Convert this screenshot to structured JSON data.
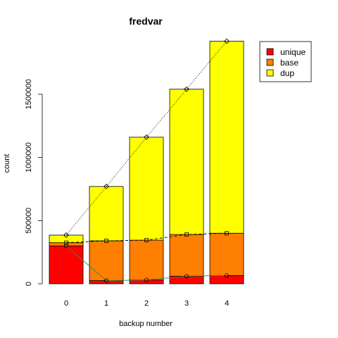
{
  "chart_data": {
    "type": "bar",
    "stacked": true,
    "title": "fredvar",
    "xlabel": "backup number",
    "ylabel": "count",
    "categories": [
      "0",
      "1",
      "2",
      "3",
      "4"
    ],
    "ylim": [
      0,
      2000000
    ],
    "yticks": [
      0,
      500000,
      1000000,
      1500000
    ],
    "ytick_labels": [
      "0",
      "500000",
      "1000000",
      "1500000"
    ],
    "series": [
      {
        "name": "unique",
        "color": "#ff0000",
        "values": [
          300000,
          25000,
          30000,
          60000,
          65000
        ]
      },
      {
        "name": "base",
        "color": "#ff7f00",
        "values": [
          25000,
          315000,
          315000,
          330000,
          335000
        ]
      },
      {
        "name": "dup",
        "color": "#ffff00",
        "values": [
          60000,
          430000,
          815000,
          1150000,
          1520000
        ]
      }
    ],
    "overlay_lines": [
      {
        "series": "unique",
        "marker": "circle",
        "line_style": "solid",
        "line_color": "#2e8b57",
        "values": [
          300000,
          25000,
          30000,
          60000,
          65000
        ]
      },
      {
        "series": "base",
        "marker": "square",
        "line_style": "dashed",
        "line_color": "#000000",
        "values": [
          325000,
          340000,
          345000,
          390000,
          400000
        ]
      },
      {
        "series": "dup",
        "marker": "diamond",
        "line_style": "dotted",
        "line_color": "#000000",
        "values": [
          385000,
          770000,
          1160000,
          1540000,
          1920000
        ]
      }
    ],
    "legend_position": "top-right",
    "grid": false
  }
}
